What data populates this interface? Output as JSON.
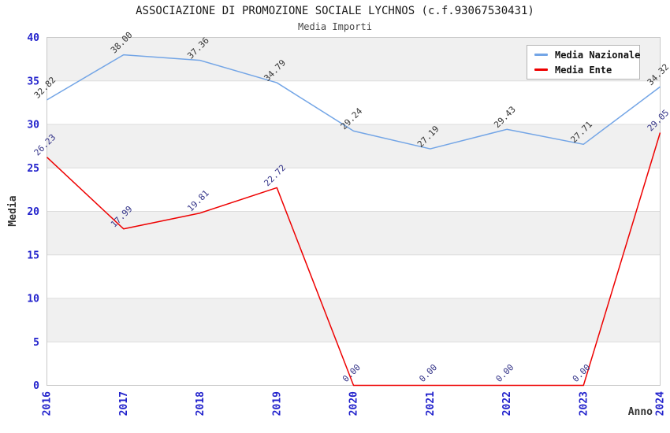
{
  "header": {
    "title": "ASSOCIAZIONE DI PROMOZIONE SOCIALE LYCHNOS (c.f.93067530431)",
    "subtitle": "Media Importi"
  },
  "chart_data": {
    "type": "line",
    "title": "ASSOCIAZIONE DI PROMOZIONE SOCIALE LYCHNOS (c.f.93067530431)",
    "subtitle": "Media Importi",
    "xlabel": "Anno",
    "ylabel": "Media",
    "categories": [
      "2016",
      "2017",
      "2018",
      "2019",
      "2020",
      "2021",
      "2022",
      "2023",
      "2024"
    ],
    "series": [
      {
        "name": "Media Nazionale",
        "color": "#73a5e6",
        "label_color": "#333333",
        "values": [
          32.82,
          38.0,
          37.36,
          34.79,
          29.24,
          27.19,
          29.43,
          27.71,
          34.32
        ]
      },
      {
        "name": "Media Ente",
        "color": "#ee0000",
        "label_color": "#333388",
        "values": [
          26.23,
          17.99,
          19.81,
          22.72,
          0.0,
          0.0,
          0.0,
          0.0,
          29.05
        ]
      }
    ],
    "ylim": [
      0,
      40
    ],
    "ytick_step": 5,
    "yticks": [
      0,
      5,
      10,
      15,
      20,
      25,
      30,
      35,
      40
    ],
    "legend_position": "top-right",
    "grid": "horizontal-bands",
    "colors": {
      "tick_label": "#2222cc",
      "axis_title": "#333333",
      "band_alt": "#f0f0f0",
      "band_main": "#ffffff",
      "grid_line": "#dcdcdc",
      "plot_border": "#c8c8c8"
    }
  }
}
